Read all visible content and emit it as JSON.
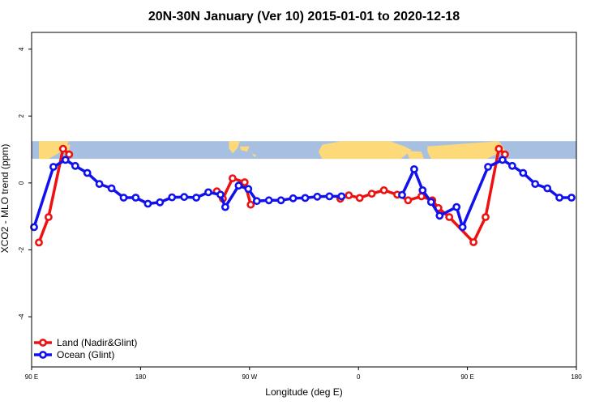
{
  "chart_data": {
    "type": "line",
    "title": "20N-30N January (Ver 10)   2015-01-01 to 2020-12-18",
    "xlabel": "Longitude (deg E)",
    "ylabel": "XCO2 - MLO trend (ppm)",
    "xlim": [
      90,
      540
    ],
    "ylim": [
      -5.5,
      4.5
    ],
    "x_ticks": [
      {
        "value": 90,
        "label": "90 E"
      },
      {
        "value": 180,
        "label": "180"
      },
      {
        "value": 270,
        "label": "90 W"
      },
      {
        "value": 360,
        "label": "0"
      },
      {
        "value": 450,
        "label": "90 E"
      },
      {
        "value": 540,
        "label": "180"
      }
    ],
    "y_ticks": [
      {
        "value": -4,
        "label": "-4"
      },
      {
        "value": -2,
        "label": "-2"
      },
      {
        "value": 0,
        "label": "0"
      },
      {
        "value": 2,
        "label": "2"
      },
      {
        "value": 4,
        "label": "4"
      }
    ],
    "map_strip": {
      "y_top": 1.25,
      "y_bottom": 0.72,
      "ocean_color": "#a7bfe0",
      "land_color": "#fdd97a"
    },
    "legend": {
      "position": "bottom-left"
    },
    "series": [
      {
        "name": "Land (Nadir&Glint)",
        "color": "#ee1111",
        "points": [
          [
            96,
            -1.78
          ],
          [
            104,
            -1.02
          ],
          [
            116,
            1.02
          ],
          [
            121,
            0.85
          ],
          [
            243,
            -0.25
          ],
          [
            248,
            -0.47
          ],
          [
            256,
            0.14
          ],
          [
            266,
            0.02
          ],
          [
            271,
            -0.65
          ],
          [
            345,
            -0.47
          ],
          [
            352,
            -0.37
          ],
          [
            361,
            -0.45
          ],
          [
            371,
            -0.32
          ],
          [
            381,
            -0.22
          ],
          [
            392,
            -0.35
          ],
          [
            401,
            -0.52
          ],
          [
            412,
            -0.4
          ],
          [
            421,
            -0.52
          ],
          [
            426,
            -0.75
          ],
          [
            435,
            -1.02
          ],
          [
            455,
            -1.77
          ],
          [
            465,
            -1.02
          ],
          [
            476,
            1.02
          ],
          [
            481,
            0.85
          ]
        ]
      },
      {
        "name": "Ocean (Glint)",
        "color": "#1111ee",
        "points": [
          [
            92,
            -1.32
          ],
          [
            108,
            0.48
          ],
          [
            118,
            0.69
          ],
          [
            126,
            0.51
          ],
          [
            136,
            0.3
          ],
          [
            146,
            -0.03
          ],
          [
            156,
            -0.16
          ],
          [
            166,
            -0.44
          ],
          [
            176,
            -0.44
          ],
          [
            186,
            -0.62
          ],
          [
            196,
            -0.58
          ],
          [
            206,
            -0.43
          ],
          [
            216,
            -0.42
          ],
          [
            226,
            -0.44
          ],
          [
            236,
            -0.28
          ],
          [
            246,
            -0.35
          ],
          [
            250,
            -0.72
          ],
          [
            261,
            -0.08
          ],
          [
            269,
            -0.18
          ],
          [
            276,
            -0.54
          ],
          [
            286,
            -0.52
          ],
          [
            296,
            -0.52
          ],
          [
            306,
            -0.46
          ],
          [
            316,
            -0.45
          ],
          [
            326,
            -0.41
          ],
          [
            336,
            -0.4
          ],
          [
            346,
            -0.4
          ],
          [
            396,
            -0.36
          ],
          [
            406,
            0.41
          ],
          [
            413,
            -0.22
          ],
          [
            420,
            -0.57
          ],
          [
            427,
            -0.98
          ],
          [
            441,
            -0.72
          ],
          [
            446,
            -1.32
          ],
          [
            467,
            0.48
          ],
          [
            479,
            0.69
          ],
          [
            487,
            0.51
          ],
          [
            496,
            0.3
          ],
          [
            506,
            -0.03
          ],
          [
            516,
            -0.16
          ],
          [
            526,
            -0.44
          ],
          [
            536,
            -0.44
          ]
        ]
      }
    ]
  }
}
